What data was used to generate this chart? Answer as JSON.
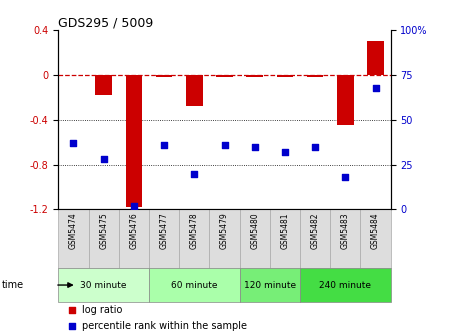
{
  "title": "GDS295 / 5009",
  "samples": [
    "GSM5474",
    "GSM5475",
    "GSM5476",
    "GSM5477",
    "GSM5478",
    "GSM5479",
    "GSM5480",
    "GSM5481",
    "GSM5482",
    "GSM5483",
    "GSM5484"
  ],
  "log_ratio": [
    0.0,
    -0.18,
    -1.18,
    -0.02,
    -0.28,
    -0.02,
    -0.02,
    -0.02,
    -0.02,
    -0.45,
    0.3
  ],
  "percentile": [
    37,
    28,
    2,
    36,
    20,
    36,
    35,
    32,
    35,
    18,
    68
  ],
  "ylim_left": [
    -1.2,
    0.4
  ],
  "ylim_right": [
    0,
    100
  ],
  "yticks_left": [
    -1.2,
    -0.8,
    -0.4,
    0.0,
    0.4
  ],
  "yticks_right": [
    0,
    25,
    50,
    75,
    100
  ],
  "bar_color": "#CC0000",
  "dot_color": "#0000CC",
  "dashed_line_color": "#CC0000",
  "groups": [
    {
      "label": "30 minute",
      "start": 0,
      "end": 3,
      "color": "#ccffcc"
    },
    {
      "label": "60 minute",
      "start": 3,
      "end": 6,
      "color": "#aaffaa"
    },
    {
      "label": "120 minute",
      "start": 6,
      "end": 8,
      "color": "#77ee77"
    },
    {
      "label": "240 minute",
      "start": 8,
      "end": 11,
      "color": "#44dd44"
    }
  ],
  "legend_log_ratio": "log ratio",
  "legend_percentile": "percentile rank within the sample",
  "time_label": "time",
  "bg_color": "#ffffff",
  "grid_color": "#000000",
  "tick_label_color_left": "#CC0000",
  "tick_label_color_right": "#0000CC",
  "label_bg_color": "#dddddd",
  "label_edge_color": "#aaaaaa"
}
